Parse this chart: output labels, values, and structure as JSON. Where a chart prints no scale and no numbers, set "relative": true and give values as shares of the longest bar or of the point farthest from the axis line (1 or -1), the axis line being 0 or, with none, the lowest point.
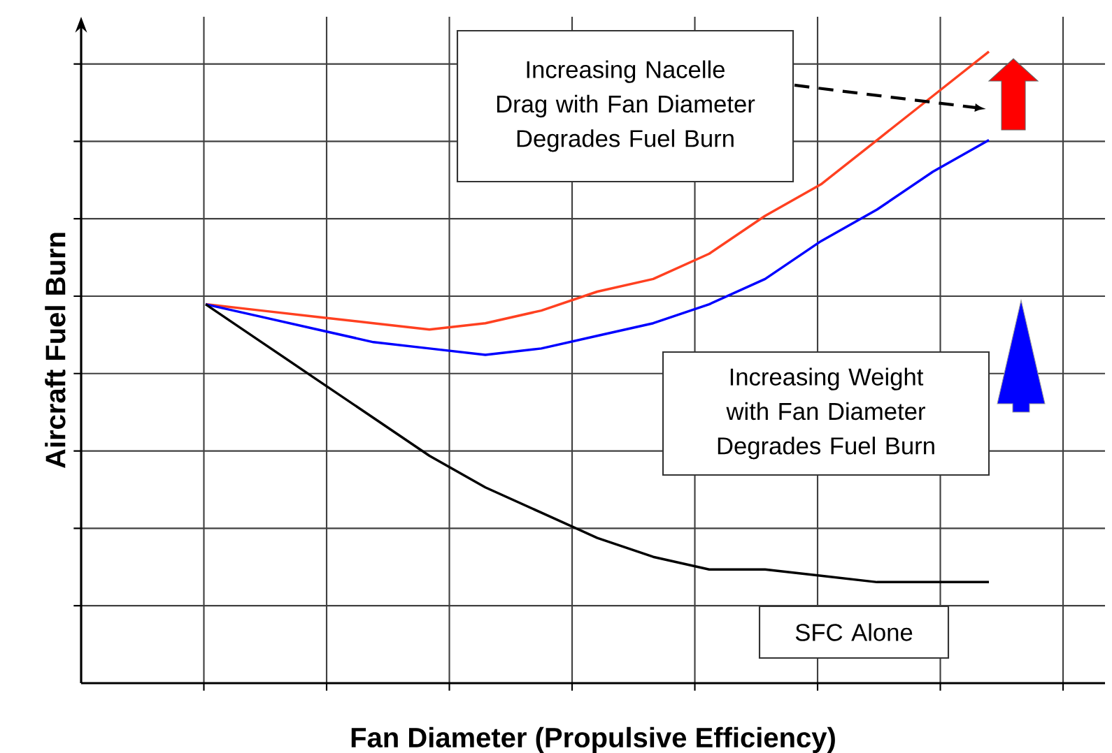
{
  "chart_data": {
    "type": "line",
    "xlabel": "Fan Diameter (Propulsive Efficiency)",
    "ylabel": "Aircraft Fuel Burn",
    "relative": true,
    "grid": true,
    "categories": [
      null,
      null,
      null,
      null,
      null,
      null,
      null,
      null,
      null,
      null,
      null,
      null,
      null,
      null,
      null
    ],
    "series": [
      {
        "color": "#ff4020",
        "values": [
          0.6,
          0.59,
          0.58,
          0.57,
          0.56,
          0.57,
          0.59,
          0.62,
          0.64,
          0.68,
          0.74,
          0.79,
          0.86,
          0.93,
          1.0
        ]
      },
      {
        "color": "#0000ff",
        "values": [
          0.6,
          0.58,
          0.56,
          0.54,
          0.53,
          0.52,
          0.53,
          0.55,
          0.57,
          0.6,
          0.64,
          0.7,
          0.75,
          0.81,
          0.86
        ]
      },
      {
        "color": "#000000",
        "values": [
          0.6,
          0.54,
          0.48,
          0.42,
          0.36,
          0.31,
          0.27,
          0.23,
          0.2,
          0.18,
          0.18,
          0.17,
          0.16,
          0.16,
          0.16
        ]
      }
    ],
    "annotations": [
      "Increasing Nacelle Drag with Fan Diameter Degrades Fuel Burn",
      "Increasing Weight with Fan Diameter Degrades Fuel Burn",
      "SFC Alone"
    ]
  }
}
